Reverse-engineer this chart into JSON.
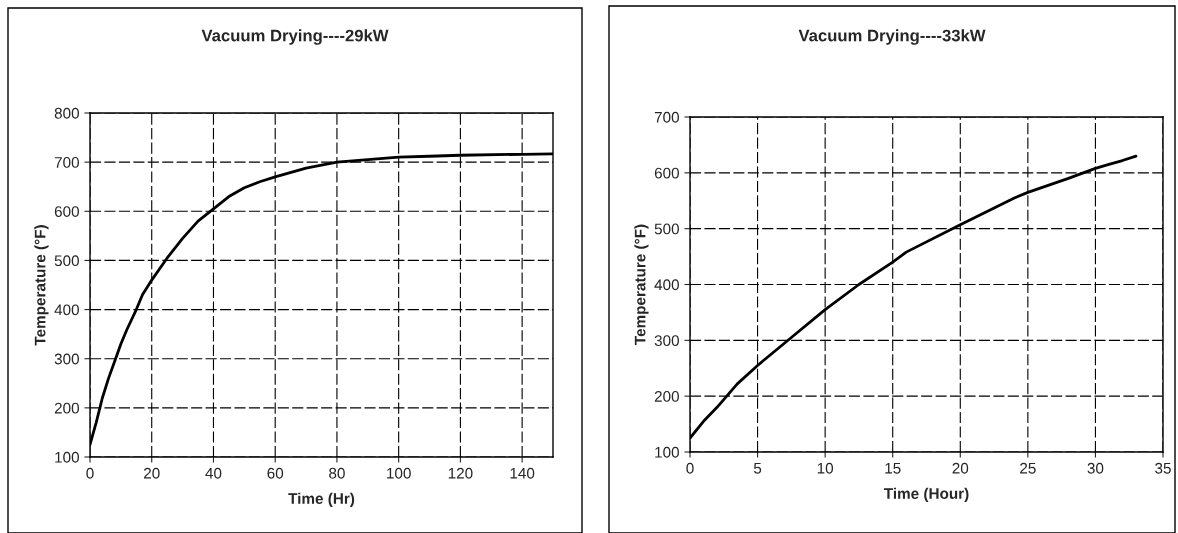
{
  "chart_data": [
    {
      "type": "line",
      "title": "Vacuum Drying----29kW",
      "xlabel": "Time (Hr)",
      "ylabel": "Temperature (°F)",
      "x": [
        0,
        2,
        4,
        6,
        8,
        10,
        12,
        15,
        17,
        20,
        25,
        30,
        35,
        40,
        45,
        50,
        55,
        60,
        70,
        80,
        90,
        100,
        110,
        120,
        140,
        150
      ],
      "series": [
        {
          "color": "#000000",
          "values": [
            125,
            170,
            220,
            260,
            295,
            330,
            360,
            400,
            430,
            460,
            505,
            545,
            580,
            605,
            630,
            648,
            660,
            670,
            688,
            700,
            705,
            710,
            712,
            714,
            716,
            717
          ]
        }
      ],
      "xlim": [
        0,
        150
      ],
      "xticks": [
        0,
        20,
        40,
        60,
        80,
        100,
        120,
        140
      ],
      "ylim": [
        100,
        800
      ],
      "yticks": [
        100,
        200,
        300,
        400,
        500,
        600,
        700,
        800
      ],
      "grid": true,
      "marker": "none",
      "line_style": "solid"
    },
    {
      "type": "line",
      "title": "Vacuum Drying----33kW",
      "xlabel": "Time (Hour)",
      "ylabel": "Temperature (°F)",
      "x": [
        0,
        1,
        2,
        3.5,
        5,
        7.5,
        10,
        12.5,
        15,
        16,
        20,
        24,
        25,
        28,
        30,
        31,
        32,
        33
      ],
      "series": [
        {
          "color": "#000000",
          "values": [
            125,
            155,
            180,
            222,
            255,
            305,
            355,
            400,
            440,
            458,
            507,
            555,
            565,
            590,
            608,
            615,
            622,
            630
          ]
        }
      ],
      "xlim": [
        0,
        35
      ],
      "xticks": [
        0,
        5,
        10,
        15,
        20,
        25,
        30,
        35
      ],
      "ylim": [
        100,
        700
      ],
      "yticks": [
        100,
        200,
        300,
        400,
        500,
        600,
        700
      ],
      "grid": true,
      "marker": "none",
      "line_style": "solid"
    }
  ]
}
